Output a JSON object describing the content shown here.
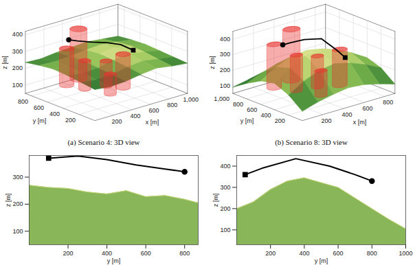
{
  "chart_data": [
    {
      "type": "surface3d",
      "title": "(a) Scenario 4: 3D view",
      "xlabel": "x [m]",
      "ylabel": "y [m]",
      "zlabel": "z [m]",
      "xlim": [
        0,
        1000
      ],
      "ylim": [
        0,
        880
      ],
      "zlim": [
        50,
        420
      ],
      "xticks": [
        200,
        400,
        600,
        800,
        1000
      ],
      "yticks": [
        200,
        400,
        600,
        800
      ],
      "zticks": [
        100,
        200,
        300,
        400
      ],
      "grid": true,
      "terrain": {
        "x": [
          0,
          167,
          333,
          500,
          667,
          833,
          1000
        ],
        "y": [
          0,
          176,
          352,
          528,
          704,
          880
        ],
        "z": [
          [
            235,
            225,
            230,
            245,
            255,
            240,
            230
          ],
          [
            245,
            235,
            240,
            255,
            265,
            250,
            235
          ],
          [
            255,
            240,
            245,
            265,
            275,
            260,
            240
          ],
          [
            260,
            250,
            255,
            270,
            280,
            265,
            245
          ],
          [
            250,
            245,
            250,
            260,
            265,
            255,
            240
          ],
          [
            235,
            230,
            240,
            245,
            250,
            240,
            230
          ]
        ]
      },
      "obstacles": {
        "x": [
          250,
          420,
          300,
          480,
          560,
          380
        ],
        "y": [
          650,
          700,
          480,
          420,
          300,
          250
        ],
        "radius": [
          60,
          70,
          50,
          50,
          60,
          50
        ],
        "z_base": [
          100,
          100,
          100,
          100,
          100,
          100
        ],
        "z_top": [
          320,
          400,
          270,
          250,
          300,
          220
        ],
        "color": "#e8332f"
      },
      "series": [
        {
          "type": "line",
          "color": "#000000",
          "x": [
            500,
            490,
            470,
            440,
            410,
            400
          ],
          "y": [
            100,
            250,
            400,
            550,
            700,
            800
          ],
          "z": [
            370,
            378,
            365,
            345,
            330,
            320
          ]
        },
        {
          "type": "scatter",
          "marker": "square",
          "color": "#000000",
          "x": [
            500
          ],
          "y": [
            100
          ],
          "z": [
            370
          ]
        },
        {
          "type": "scatter",
          "marker": "circle",
          "color": "#000000",
          "x": [
            400
          ],
          "y": [
            800
          ],
          "z": [
            320
          ]
        }
      ]
    },
    {
      "type": "surface3d",
      "title": "(b) Scenario 8: 3D view",
      "xlabel": "x [m]",
      "ylabel": "y [m]",
      "zlabel": "z [m]",
      "xlim": [
        0,
        900
      ],
      "ylim": [
        0,
        1000
      ],
      "zlim": [
        50,
        450
      ],
      "xticks": [
        200,
        400,
        600,
        800
      ],
      "yticks": [
        200,
        400,
        600,
        800,
        1000
      ],
      "zticks": [
        100,
        200,
        300,
        400
      ],
      "grid": true,
      "terrain": {
        "x": [
          0,
          150,
          300,
          450,
          600,
          750,
          900
        ],
        "y": [
          0,
          200,
          400,
          600,
          800,
          1000
        ],
        "z": [
          [
            110,
            140,
            160,
            175,
            165,
            140,
            110
          ],
          [
            180,
            240,
            280,
            295,
            270,
            230,
            180
          ],
          [
            220,
            290,
            335,
            345,
            320,
            270,
            210
          ],
          [
            200,
            260,
            300,
            310,
            290,
            250,
            200
          ],
          [
            150,
            190,
            220,
            230,
            210,
            180,
            150
          ],
          [
            90,
            110,
            125,
            130,
            120,
            105,
            90
          ]
        ]
      },
      "obstacles": {
        "x": [
          200,
          400,
          280,
          450,
          600,
          350
        ],
        "y": [
          700,
          750,
          500,
          450,
          350,
          250
        ],
        "radius": [
          60,
          70,
          50,
          50,
          60,
          50
        ],
        "z_base": [
          100,
          100,
          100,
          100,
          100,
          100
        ],
        "z_top": [
          380,
          430,
          330,
          300,
          330,
          260
        ],
        "color": "#e8332f"
      },
      "series": [
        {
          "type": "line",
          "color": "#000000",
          "x": [
            450,
            440,
            420,
            390,
            360,
            350
          ],
          "y": [
            50,
            150,
            350,
            550,
            700,
            800
          ],
          "z": [
            360,
            390,
            435,
            400,
            360,
            330
          ]
        },
        {
          "type": "scatter",
          "marker": "square",
          "color": "#000000",
          "x": [
            450
          ],
          "y": [
            50
          ],
          "z": [
            360
          ]
        },
        {
          "type": "scatter",
          "marker": "circle",
          "color": "#000000",
          "x": [
            350
          ],
          "y": [
            800
          ],
          "z": [
            330
          ]
        }
      ]
    },
    {
      "type": "profile",
      "xlabel": "y [m]",
      "ylabel": "z [m]",
      "xlim": [
        0,
        870
      ],
      "ylim": [
        50,
        380
      ],
      "xticks": [
        200,
        400,
        600,
        800
      ],
      "yticks": [
        100,
        200,
        300
      ],
      "grid": false,
      "series": [
        {
          "type": "area",
          "color": "#8ab65a",
          "x": [
            0,
            100,
            200,
            300,
            400,
            500,
            600,
            700,
            800,
            870
          ],
          "values": [
            270,
            262,
            258,
            245,
            238,
            250,
            228,
            232,
            218,
            205
          ]
        },
        {
          "type": "line",
          "color": "#000000",
          "x": [
            100,
            250,
            400,
            550,
            700,
            800
          ],
          "values": [
            370,
            378,
            365,
            345,
            330,
            320
          ]
        },
        {
          "type": "scatter",
          "marker": "square",
          "color": "#000000",
          "x": [
            100
          ],
          "values": [
            370
          ]
        },
        {
          "type": "scatter",
          "marker": "circle",
          "color": "#000000",
          "x": [
            800
          ],
          "values": [
            320
          ]
        }
      ]
    },
    {
      "type": "profile",
      "xlabel": "y [m]",
      "ylabel": "z [m]",
      "xlim": [
        0,
        1000
      ],
      "ylim": [
        30,
        450
      ],
      "xticks": [
        200,
        400,
        600,
        800,
        1000
      ],
      "yticks": [
        100,
        200,
        300,
        400
      ],
      "grid": false,
      "series": [
        {
          "type": "area",
          "color": "#8ab65a",
          "x": [
            0,
            100,
            200,
            300,
            400,
            500,
            600,
            700,
            800,
            900,
            1000
          ],
          "values": [
            200,
            232,
            290,
            330,
            345,
            322,
            300,
            250,
            200,
            150,
            105
          ]
        },
        {
          "type": "line",
          "color": "#000000",
          "x": [
            50,
            150,
            350,
            550,
            700,
            800
          ],
          "values": [
            360,
            390,
            435,
            400,
            360,
            330
          ]
        },
        {
          "type": "scatter",
          "marker": "square",
          "color": "#000000",
          "x": [
            50
          ],
          "values": [
            360
          ]
        },
        {
          "type": "scatter",
          "marker": "circle",
          "color": "#000000",
          "x": [
            800
          ],
          "values": [
            330
          ]
        }
      ]
    }
  ]
}
